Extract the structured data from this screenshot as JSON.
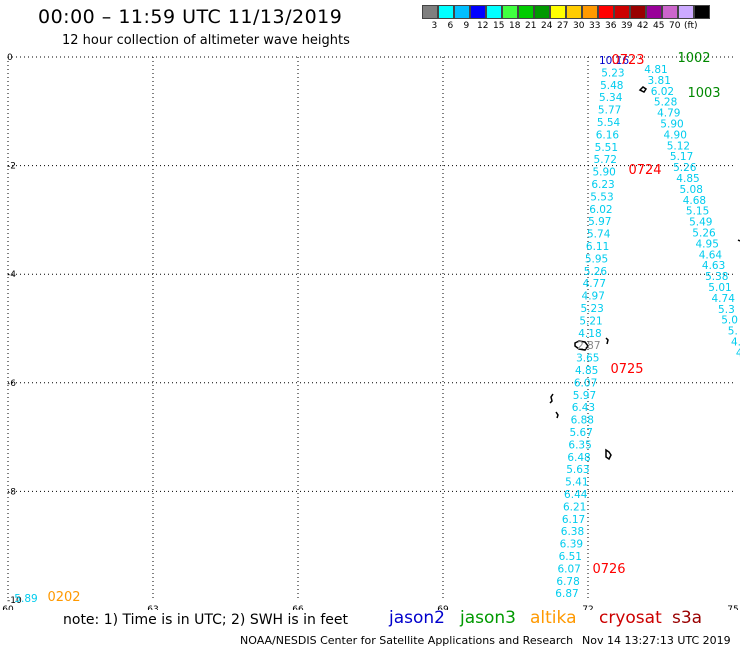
{
  "header": {
    "title": "00:00 – 11:59 UTC 11/13/2019",
    "subtitle": "12 hour collection of altimeter wave heights"
  },
  "colorbar": {
    "colors": [
      "#7f7f7f",
      "#00ffff",
      "#00bfff",
      "#0000ff",
      "#00ffff",
      "#40ff40",
      "#00cc00",
      "#009900",
      "#ffff00",
      "#ffcc00",
      "#ff9900",
      "#ff0000",
      "#cc0000",
      "#990000",
      "#990099",
      "#cc66cc",
      "#ccaaff",
      "#000000"
    ],
    "labels": [
      "3",
      "6",
      "9",
      "12",
      "15",
      "18",
      "21",
      "24",
      "27",
      "30",
      "33",
      "36",
      "39",
      "42",
      "45",
      "70",
      "(ft)"
    ]
  },
  "axes": {
    "x_ticks": [
      "60",
      "63",
      "66",
      "69",
      "72",
      "75"
    ],
    "y_ticks": [
      "0",
      "-2",
      "-4",
      "-6",
      "-8",
      "-10"
    ]
  },
  "track_labels": [
    {
      "text": "0723",
      "color": "#ff0000"
    },
    {
      "text": "1002",
      "color": "#008800"
    },
    {
      "text": "1003",
      "color": "#008800"
    },
    {
      "text": "0724",
      "color": "#ff0000"
    },
    {
      "text": "0725",
      "color": "#ff0000"
    },
    {
      "text": "0726",
      "color": "#ff0000"
    },
    {
      "text": "0202",
      "color": "#ff9900"
    }
  ],
  "track1_values": [
    "10.16",
    "5.23",
    "5.48",
    "5.34",
    "5.77",
    "5.54",
    "6.16",
    "5.51",
    "5.72",
    "5.90",
    "6.23",
    "5.53",
    "6.02",
    "5.97",
    "5.74",
    "6.11",
    "5.95",
    "5.26",
    "4.77",
    "4.97",
    "5.23",
    "5.21",
    "4.18",
    "2.87",
    "3.65",
    "4.85",
    "6.07",
    "5.97",
    "6.43",
    "6.88",
    "5.67",
    "6.35",
    "6.48",
    "5.63",
    "5.41",
    "6.44",
    "6.21",
    "6.17",
    "6.38",
    "6.39",
    "6.51",
    "6.07",
    "6.78",
    "6.87"
  ],
  "track2_values": [
    "4.81",
    "3.81",
    "6.02",
    "5.28",
    "4.79",
    "5.90",
    "4.90",
    "5.12",
    "5.17",
    "5.26",
    "4.85",
    "5.08",
    "4.68",
    "5.15",
    "5.49",
    "5.26",
    "4.95",
    "4.64",
    "4.63",
    "5.38",
    "5.01",
    "4.74",
    "5.3",
    "5.0",
    "5.",
    "4.",
    "4"
  ],
  "bottom_left_value": "5.89",
  "footer": {
    "note": "note: 1) Time is in UTC; 2) SWH is in feet",
    "legend": [
      {
        "name": "jason2",
        "color": "#0000cc"
      },
      {
        "name": "jason3",
        "color": "#009900"
      },
      {
        "name": "altika",
        "color": "#ff9900"
      },
      {
        "name": "cryosat",
        "color": "#cc0000"
      },
      {
        "name": "s3a",
        "color": "#990000"
      }
    ],
    "credit": "NOAA/NESDIS Center for Satellite Applications and Research",
    "timestamp": "Nov 14 13:27:13 UTC 2019"
  }
}
